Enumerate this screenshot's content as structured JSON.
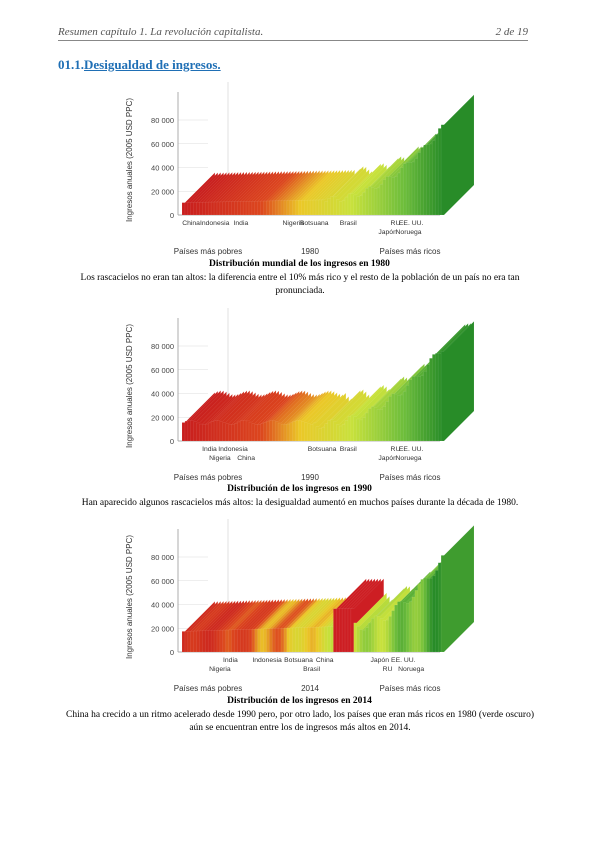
{
  "header": {
    "left": "Resumen capítulo 1. La revolución capitalista.",
    "right": "2 de 19"
  },
  "section": {
    "number": "01.1.",
    "title": "Desigualdad de ingresos."
  },
  "charts": [
    {
      "year": "1980",
      "ylabel": "Ingresos anuales (2005 USD PPC)",
      "yticks": [
        "80 000",
        "60 000",
        "40 000",
        "20 000",
        "0"
      ],
      "xleft": "Países más pobres",
      "xright": "Países más ricos",
      "country_labels": [
        {
          "text": "China",
          "pos": 0.05,
          "row": 0
        },
        {
          "text": "Indonesia",
          "pos": 0.14,
          "row": 0
        },
        {
          "text": "India",
          "pos": 0.24,
          "row": 0
        },
        {
          "text": "Nigeria",
          "pos": 0.44,
          "row": 0
        },
        {
          "text": "Botsuana",
          "pos": 0.52,
          "row": 0
        },
        {
          "text": "Brasil",
          "pos": 0.65,
          "row": 0
        },
        {
          "text": "RU",
          "pos": 0.83,
          "row": 0
        },
        {
          "text": "EE. UU.",
          "pos": 0.89,
          "row": 0
        },
        {
          "text": "Japón",
          "pos": 0.8,
          "row": 1
        },
        {
          "text": "Noruega",
          "pos": 0.88,
          "row": 1
        }
      ],
      "caption": "Distribución mundial de los ingresos en 1980",
      "description": "Los rascacielos no eran tan altos: la diferencia entre el 10% más rico y el resto de la población de un país no era tan pronunciada."
    },
    {
      "year": "1990",
      "ylabel": "Ingresos anuales (2005 USD PPC)",
      "yticks": [
        "80 000",
        "60 000",
        "40 000",
        "20 000",
        "0"
      ],
      "xleft": "Países más pobres",
      "xright": "Países más ricos",
      "country_labels": [
        {
          "text": "India",
          "pos": 0.12,
          "row": 0
        },
        {
          "text": "Indonesia",
          "pos": 0.21,
          "row": 0
        },
        {
          "text": "Nigeria",
          "pos": 0.16,
          "row": 1
        },
        {
          "text": "China",
          "pos": 0.26,
          "row": 1
        },
        {
          "text": "Botsuana",
          "pos": 0.55,
          "row": 0
        },
        {
          "text": "Brasil",
          "pos": 0.65,
          "row": 0
        },
        {
          "text": "RU",
          "pos": 0.83,
          "row": 0
        },
        {
          "text": "EE. UU.",
          "pos": 0.89,
          "row": 0
        },
        {
          "text": "Japón",
          "pos": 0.8,
          "row": 1
        },
        {
          "text": "Noruega",
          "pos": 0.88,
          "row": 1
        }
      ],
      "caption": "Distribución de los ingresos en 1990",
      "description": "Han aparecido algunos rascacielos más altos: la desigualdad aumentó en muchos países durante la década de 1980."
    },
    {
      "year": "2014",
      "ylabel": "Ingresos anuales (2005 USD PPC)",
      "yticks": [
        "80 000",
        "60 000",
        "40 000",
        "20 000",
        "0"
      ],
      "xleft": "Países más pobres",
      "xright": "Países más ricos",
      "country_labels": [
        {
          "text": "India",
          "pos": 0.2,
          "row": 0
        },
        {
          "text": "Nigeria",
          "pos": 0.16,
          "row": 1
        },
        {
          "text": "Indonesia",
          "pos": 0.34,
          "row": 0
        },
        {
          "text": "Botsuana",
          "pos": 0.46,
          "row": 0
        },
        {
          "text": "China",
          "pos": 0.56,
          "row": 0
        },
        {
          "text": "Brasil",
          "pos": 0.51,
          "row": 1
        },
        {
          "text": "Japón",
          "pos": 0.77,
          "row": 0
        },
        {
          "text": "EE. UU.",
          "pos": 0.86,
          "row": 0
        },
        {
          "text": "RU",
          "pos": 0.8,
          "row": 1
        },
        {
          "text": "Noruega",
          "pos": 0.89,
          "row": 1
        }
      ],
      "caption": "Distribución de los ingresos en 2014",
      "description": "China ha crecido a un ritmo acelerado desde 1990 pero, por otro lado, los países que eran más ricos en 1980 (verde oscuro) aún se encuentran entre los de ingresos más altos en 2014."
    }
  ]
}
